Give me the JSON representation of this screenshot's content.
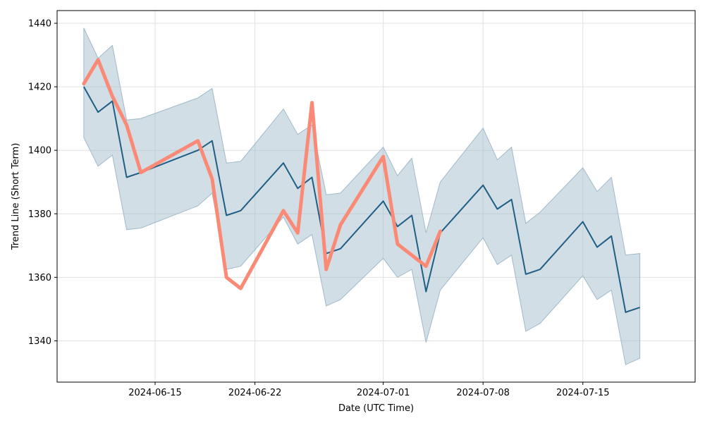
{
  "chart_data": {
    "type": "line",
    "title": "",
    "xlabel": "Date (UTC Time)",
    "ylabel": "Trend Line (Short Term)",
    "xlim": [
      "2024-06-08T03:00",
      "2024-07-22T21:00"
    ],
    "ylim": [
      1327,
      1444
    ],
    "grid": true,
    "x_ticks": [
      "2024-06-15",
      "2024-06-22",
      "2024-07-01",
      "2024-07-08",
      "2024-07-15"
    ],
    "y_ticks": [
      1340,
      1360,
      1380,
      1400,
      1420,
      1440
    ],
    "colors": {
      "trend": "#1f5f85",
      "band": "#9fb9c9",
      "actual": "#fa8a75",
      "grid": "#e0e0e0",
      "axis": "#000000"
    },
    "series": [
      {
        "role": "confidence_band",
        "x": [
          "2024-06-10",
          "2024-06-11",
          "2024-06-12",
          "2024-06-13",
          "2024-06-14",
          "2024-06-18",
          "2024-06-19",
          "2024-06-20",
          "2024-06-21",
          "2024-06-24",
          "2024-06-25",
          "2024-06-26",
          "2024-06-27",
          "2024-06-28",
          "2024-07-01",
          "2024-07-02",
          "2024-07-03",
          "2024-07-04",
          "2024-07-05",
          "2024-07-08",
          "2024-07-09",
          "2024-07-10",
          "2024-07-11",
          "2024-07-12",
          "2024-07-15",
          "2024-07-16",
          "2024-07-17",
          "2024-07-18",
          "2024-07-19"
        ],
        "upper": [
          1438.5,
          1429,
          1433,
          1409.5,
          1410,
          1416.5,
          1419.5,
          1396,
          1396.5,
          1413,
          1405,
          1408,
          1386,
          1386.5,
          1401,
          1392,
          1397.5,
          1374,
          1390,
          1407,
          1397,
          1401,
          1377,
          1380.5,
          1394.5,
          1387,
          1391.5,
          1367,
          1367.5
        ],
        "lower": [
          1404,
          1395,
          1398.5,
          1375,
          1375.5,
          1382.5,
          1386.5,
          1362.5,
          1363.5,
          1379,
          1370.5,
          1373.5,
          1351,
          1353,
          1366,
          1360,
          1362.5,
          1339.5,
          1356,
          1372.5,
          1364,
          1367,
          1343,
          1345.5,
          1360.5,
          1353,
          1356,
          1332.5,
          1334.5
        ]
      },
      {
        "role": "trend",
        "x": [
          "2024-06-10",
          "2024-06-11",
          "2024-06-12",
          "2024-06-13",
          "2024-06-14",
          "2024-06-18",
          "2024-06-19",
          "2024-06-20",
          "2024-06-21",
          "2024-06-24",
          "2024-06-25",
          "2024-06-26",
          "2024-06-27",
          "2024-06-28",
          "2024-07-01",
          "2024-07-02",
          "2024-07-03",
          "2024-07-04",
          "2024-07-05",
          "2024-07-08",
          "2024-07-09",
          "2024-07-10",
          "2024-07-11",
          "2024-07-12",
          "2024-07-15",
          "2024-07-16",
          "2024-07-17",
          "2024-07-18",
          "2024-07-19"
        ],
        "values": [
          1420,
          1412,
          1415.5,
          1391.5,
          1393,
          1400,
          1403,
          1379.5,
          1381,
          1396,
          1388,
          1391.5,
          1367.5,
          1369,
          1384,
          1376,
          1379.5,
          1355.5,
          1374,
          1389,
          1381.5,
          1384.5,
          1361,
          1362.5,
          1377.5,
          1369.5,
          1373,
          1349,
          1350.5
        ]
      },
      {
        "role": "actual",
        "x": [
          "2024-06-10",
          "2024-06-11",
          "2024-06-12",
          "2024-06-13",
          "2024-06-14",
          "2024-06-18",
          "2024-06-19",
          "2024-06-20",
          "2024-06-21",
          "2024-06-24",
          "2024-06-25",
          "2024-06-26",
          "2024-06-27",
          "2024-06-28",
          "2024-07-01",
          "2024-07-02",
          "2024-07-04",
          "2024-07-05"
        ],
        "values": [
          1421,
          1428.5,
          1417,
          1408,
          1393,
          1403,
          1391,
          1360,
          1356.5,
          1381,
          1374,
          1415,
          1362.5,
          1376.5,
          1398,
          1370.5,
          1363.5,
          1374.5
        ]
      }
    ]
  }
}
